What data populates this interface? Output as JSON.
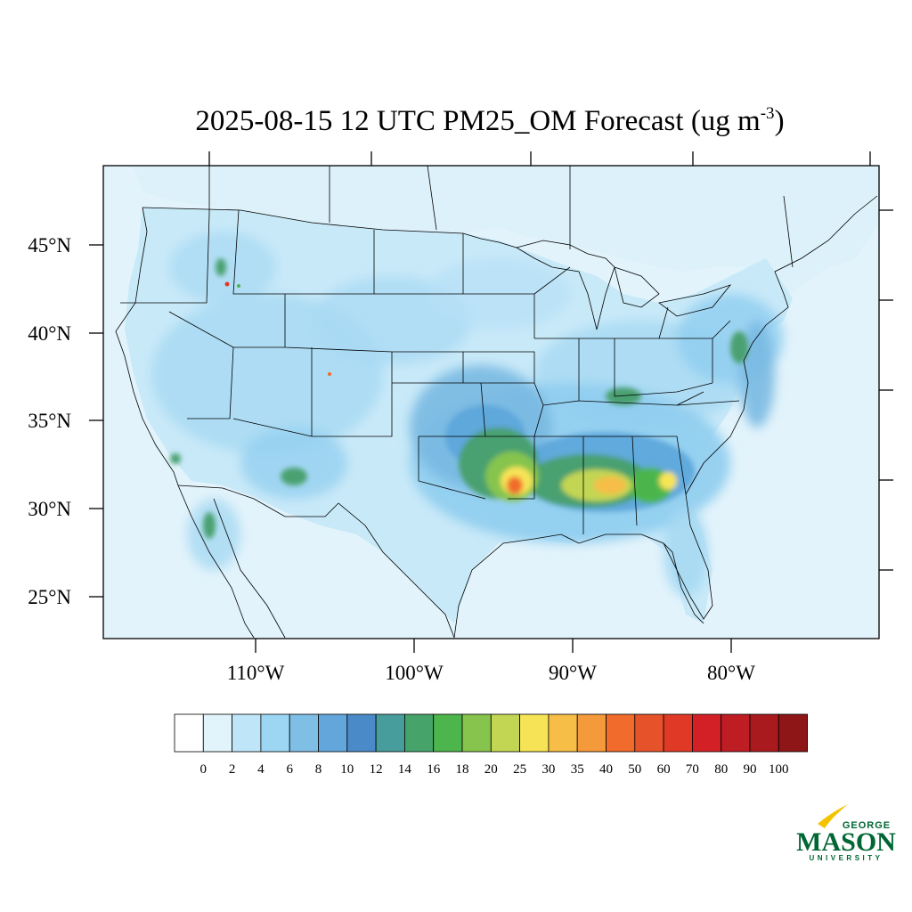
{
  "map": {
    "title_main": "2025-08-15 12 UTC PM25_OM Forecast (ug m",
    "title_sup": "-3",
    "title_close": ")",
    "lat_labels": [
      "45°N",
      "40°N",
      "35°N",
      "30°N",
      "25°N"
    ],
    "lon_labels": [
      "110°W",
      "100°W",
      "90°W",
      "80°W"
    ],
    "ocean_color": "#e2f3fb",
    "border_color": "#000000"
  },
  "colorbar": {
    "labels": [
      "0",
      "2",
      "4",
      "6",
      "8",
      "10",
      "12",
      "14",
      "16",
      "18",
      "20",
      "25",
      "30",
      "35",
      "40",
      "50",
      "60",
      "70",
      "80",
      "90",
      "100"
    ],
    "colors": [
      "#ffffff",
      "#e1f3fb",
      "#bfe6f8",
      "#9dd6f3",
      "#7fbfe5",
      "#63a6dc",
      "#4b8ac8",
      "#479c9c",
      "#46a46a",
      "#4cb54b",
      "#86c44d",
      "#c3d653",
      "#f7e456",
      "#f6bd47",
      "#f59a3a",
      "#f06b2c",
      "#e6522a",
      "#e03a26",
      "#d32026",
      "#bd1d23",
      "#a81a1e",
      "#8e1616"
    ]
  },
  "logo": {
    "top": "GEORGE",
    "middle": "MASON",
    "bottom": "UNIVERSITY",
    "color": "#006633",
    "accent": "#f4c300"
  }
}
